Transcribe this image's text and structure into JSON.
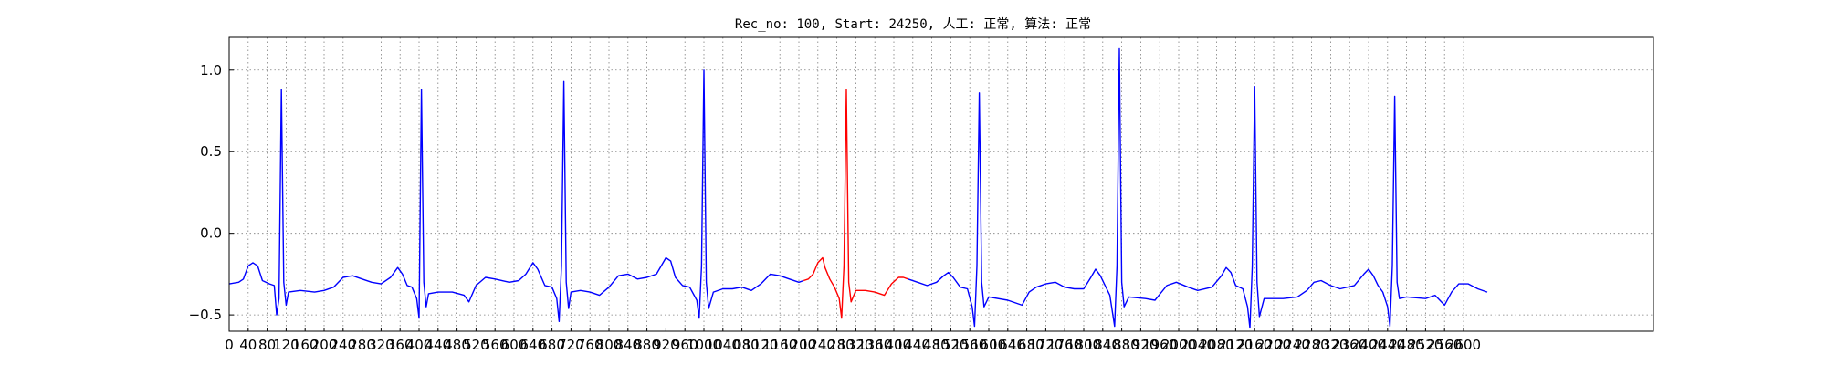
{
  "chart_data": {
    "type": "line",
    "title": "Rec_no: 100, Start: 24250, 人工: 正常, 算法: 正常",
    "xlabel": "",
    "ylabel": "",
    "xlim": [
      0,
      3000
    ],
    "ylim": [
      -0.6,
      1.2
    ],
    "xticks": [
      0,
      40,
      80,
      120,
      160,
      200,
      240,
      280,
      320,
      360,
      400,
      440,
      480,
      520,
      560,
      600,
      640,
      680,
      720,
      760,
      800,
      840,
      880,
      920,
      960,
      1000,
      1040,
      1080,
      1120,
      1160,
      1200,
      1240,
      1280,
      1320,
      1360,
      1400,
      1440,
      1480,
      1520,
      1560,
      1600,
      1640,
      1680,
      1720,
      1760,
      1800,
      1840,
      1880,
      1920,
      1960,
      2000,
      2040,
      2080,
      2120,
      2160,
      2200,
      2240,
      2280,
      2320,
      2360,
      2400,
      2440,
      2480,
      2520,
      2560,
      2600
    ],
    "xtick_labels": [
      "0",
      "40",
      "80",
      "120",
      "160",
      "200",
      "240",
      "280",
      "320",
      "360",
      "400",
      "440",
      "480",
      "520",
      "560",
      "600",
      "640",
      "680",
      "720",
      "760",
      "800",
      "840",
      "880",
      "920",
      "960",
      "1000",
      "1040",
      "1080",
      "1120",
      "1160",
      "1200",
      "1240",
      "1280",
      "1320",
      "1360",
      "1400",
      "1440",
      "1480",
      "1520",
      "1560",
      "1600",
      "1640",
      "1680",
      "1720",
      "1760",
      "1800",
      "1840",
      "1880",
      "1920",
      "1960",
      "2000",
      "2040",
      "2080",
      "2120",
      "2160",
      "2200",
      "2240",
      "2280",
      "2320",
      "2360",
      "2400",
      "2440",
      "2480",
      "2520",
      "2560",
      "2600"
    ],
    "yticks": [
      -0.5,
      0.0,
      0.5,
      1.0
    ],
    "ytick_labels": [
      "−0.5",
      "0.0",
      "0.5",
      "1.0"
    ],
    "grid": true,
    "x_range_shown": [
      0,
      2650
    ],
    "series": [
      {
        "color": "#0000ff",
        "points": [
          [
            0,
            -0.31
          ],
          [
            20,
            -0.3
          ],
          [
            30,
            -0.28
          ],
          [
            40,
            -0.2
          ],
          [
            50,
            -0.18
          ],
          [
            60,
            -0.2
          ],
          [
            70,
            -0.29
          ],
          [
            85,
            -0.31
          ],
          [
            95,
            -0.32
          ],
          [
            100,
            -0.5
          ],
          [
            105,
            -0.4
          ],
          [
            110,
            0.88
          ],
          [
            115,
            -0.3
          ],
          [
            120,
            -0.44
          ],
          [
            125,
            -0.36
          ],
          [
            150,
            -0.35
          ],
          [
            180,
            -0.36
          ],
          [
            200,
            -0.35
          ],
          [
            220,
            -0.33
          ],
          [
            240,
            -0.27
          ],
          [
            260,
            -0.26
          ],
          [
            280,
            -0.28
          ],
          [
            300,
            -0.3
          ],
          [
            320,
            -0.31
          ],
          [
            340,
            -0.27
          ],
          [
            355,
            -0.21
          ],
          [
            365,
            -0.25
          ],
          [
            375,
            -0.32
          ],
          [
            385,
            -0.33
          ],
          [
            395,
            -0.4
          ],
          [
            400,
            -0.52
          ],
          [
            405,
            0.88
          ],
          [
            410,
            -0.3
          ],
          [
            415,
            -0.45
          ],
          [
            420,
            -0.37
          ],
          [
            440,
            -0.36
          ],
          [
            470,
            -0.36
          ],
          [
            495,
            -0.38
          ],
          [
            505,
            -0.42
          ],
          [
            520,
            -0.32
          ],
          [
            540,
            -0.27
          ],
          [
            560,
            -0.28
          ],
          [
            590,
            -0.3
          ],
          [
            610,
            -0.29
          ],
          [
            625,
            -0.25
          ],
          [
            640,
            -0.18
          ],
          [
            650,
            -0.22
          ],
          [
            665,
            -0.32
          ],
          [
            680,
            -0.33
          ],
          [
            690,
            -0.4
          ],
          [
            695,
            -0.54
          ],
          [
            700,
            -0.2
          ],
          [
            705,
            0.93
          ],
          [
            710,
            -0.3
          ],
          [
            715,
            -0.46
          ],
          [
            720,
            -0.36
          ],
          [
            740,
            -0.35
          ],
          [
            760,
            -0.36
          ],
          [
            780,
            -0.38
          ],
          [
            800,
            -0.33
          ],
          [
            820,
            -0.26
          ],
          [
            840,
            -0.25
          ],
          [
            860,
            -0.28
          ],
          [
            880,
            -0.27
          ],
          [
            900,
            -0.25
          ],
          [
            920,
            -0.15
          ],
          [
            930,
            -0.17
          ],
          [
            940,
            -0.27
          ],
          [
            955,
            -0.32
          ],
          [
            970,
            -0.33
          ],
          [
            985,
            -0.41
          ],
          [
            990,
            -0.52
          ],
          [
            995,
            -0.2
          ],
          [
            1000,
            1.0
          ],
          [
            1005,
            -0.3
          ],
          [
            1010,
            -0.46
          ],
          [
            1020,
            -0.36
          ],
          [
            1040,
            -0.34
          ],
          [
            1060,
            -0.34
          ],
          [
            1080,
            -0.33
          ],
          [
            1100,
            -0.35
          ],
          [
            1120,
            -0.31
          ],
          [
            1140,
            -0.25
          ],
          [
            1160,
            -0.26
          ],
          [
            1180,
            -0.28
          ],
          [
            1200,
            -0.3
          ],
          [
            1210,
            -0.29
          ]
        ]
      },
      {
        "color": "#ff0000",
        "points": [
          [
            1210,
            -0.29
          ],
          [
            1220,
            -0.28
          ],
          [
            1230,
            -0.25
          ],
          [
            1240,
            -0.18
          ],
          [
            1250,
            -0.15
          ],
          [
            1255,
            -0.21
          ],
          [
            1265,
            -0.28
          ],
          [
            1275,
            -0.33
          ],
          [
            1285,
            -0.4
          ],
          [
            1290,
            -0.52
          ],
          [
            1295,
            -0.2
          ],
          [
            1300,
            0.88
          ],
          [
            1305,
            -0.3
          ],
          [
            1310,
            -0.42
          ],
          [
            1320,
            -0.35
          ],
          [
            1340,
            -0.35
          ],
          [
            1360,
            -0.36
          ],
          [
            1380,
            -0.38
          ],
          [
            1395,
            -0.31
          ],
          [
            1410,
            -0.27
          ],
          [
            1420,
            -0.27
          ],
          [
            1430,
            -0.28
          ]
        ]
      },
      {
        "color": "#0000ff",
        "points": [
          [
            1430,
            -0.28
          ],
          [
            1450,
            -0.3
          ],
          [
            1470,
            -0.32
          ],
          [
            1490,
            -0.3
          ],
          [
            1505,
            -0.26
          ],
          [
            1515,
            -0.24
          ],
          [
            1525,
            -0.27
          ],
          [
            1540,
            -0.33
          ],
          [
            1555,
            -0.34
          ],
          [
            1565,
            -0.45
          ],
          [
            1570,
            -0.57
          ],
          [
            1575,
            -0.2
          ],
          [
            1580,
            0.86
          ],
          [
            1585,
            -0.3
          ],
          [
            1590,
            -0.45
          ],
          [
            1600,
            -0.39
          ],
          [
            1640,
            -0.41
          ],
          [
            1670,
            -0.44
          ],
          [
            1685,
            -0.36
          ],
          [
            1700,
            -0.33
          ],
          [
            1720,
            -0.31
          ],
          [
            1740,
            -0.3
          ],
          [
            1760,
            -0.33
          ],
          [
            1780,
            -0.34
          ],
          [
            1800,
            -0.34
          ],
          [
            1815,
            -0.27
          ],
          [
            1825,
            -0.22
          ],
          [
            1835,
            -0.26
          ],
          [
            1845,
            -0.32
          ],
          [
            1855,
            -0.38
          ],
          [
            1865,
            -0.57
          ],
          [
            1870,
            -0.2
          ],
          [
            1875,
            1.13
          ],
          [
            1880,
            -0.3
          ],
          [
            1885,
            -0.45
          ],
          [
            1895,
            -0.39
          ],
          [
            1930,
            -0.4
          ],
          [
            1950,
            -0.41
          ],
          [
            1975,
            -0.32
          ],
          [
            1995,
            -0.3
          ],
          [
            2020,
            -0.33
          ],
          [
            2040,
            -0.35
          ],
          [
            2070,
            -0.33
          ],
          [
            2090,
            -0.26
          ],
          [
            2100,
            -0.21
          ],
          [
            2110,
            -0.24
          ],
          [
            2120,
            -0.32
          ],
          [
            2135,
            -0.34
          ],
          [
            2145,
            -0.45
          ],
          [
            2150,
            -0.58
          ],
          [
            2155,
            -0.2
          ],
          [
            2160,
            0.9
          ],
          [
            2165,
            -0.3
          ],
          [
            2170,
            -0.51
          ],
          [
            2180,
            -0.4
          ],
          [
            2220,
            -0.4
          ],
          [
            2250,
            -0.39
          ],
          [
            2270,
            -0.35
          ],
          [
            2285,
            -0.3
          ],
          [
            2300,
            -0.29
          ],
          [
            2320,
            -0.32
          ],
          [
            2340,
            -0.34
          ],
          [
            2370,
            -0.32
          ],
          [
            2390,
            -0.25
          ],
          [
            2400,
            -0.22
          ],
          [
            2410,
            -0.26
          ],
          [
            2420,
            -0.32
          ],
          [
            2430,
            -0.36
          ],
          [
            2440,
            -0.45
          ],
          [
            2445,
            -0.57
          ],
          [
            2450,
            -0.2
          ],
          [
            2455,
            0.84
          ],
          [
            2460,
            -0.3
          ],
          [
            2465,
            -0.4
          ],
          [
            2480,
            -0.39
          ],
          [
            2520,
            -0.4
          ],
          [
            2540,
            -0.38
          ],
          [
            2560,
            -0.44
          ],
          [
            2575,
            -0.36
          ],
          [
            2590,
            -0.31
          ],
          [
            2610,
            -0.31
          ],
          [
            2630,
            -0.34
          ],
          [
            2650,
            -0.36
          ]
        ]
      }
    ]
  }
}
